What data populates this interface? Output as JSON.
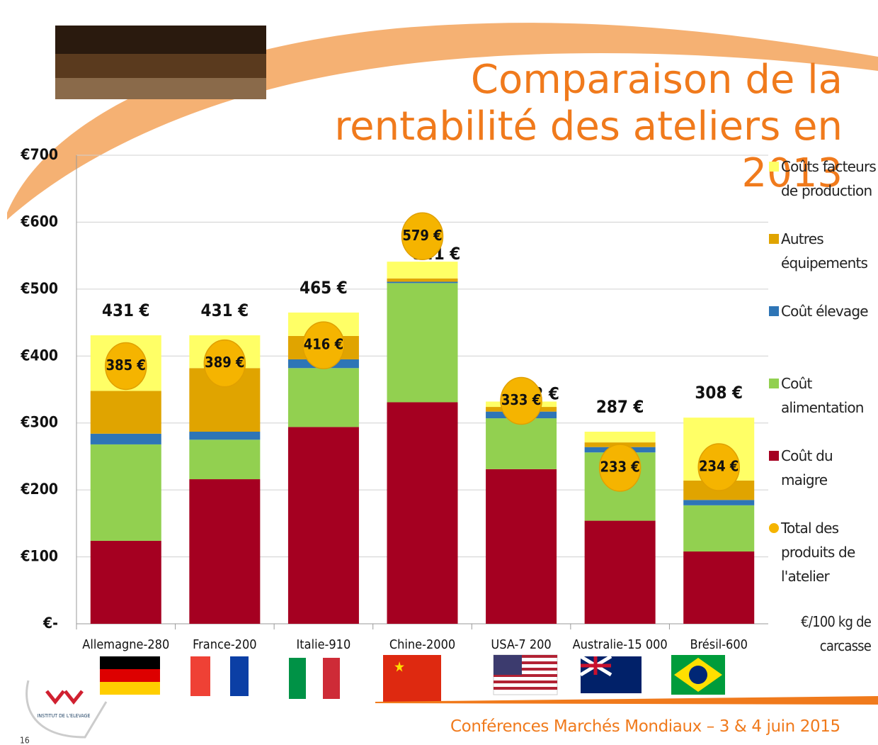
{
  "chart_data": {
    "type": "bar",
    "stacked": true,
    "title": "Comparaison de la rentabilité des ateliers en 2013",
    "categories": [
      "Allemagne-280",
      "France-200",
      "Italie-910",
      "Chine-2000",
      "USA-7 200",
      "Australie-15 000",
      "Brésil-600"
    ],
    "series": [
      {
        "name": "Coût du maigre",
        "color": "#a50021",
        "values": [
          124,
          216,
          294,
          331,
          231,
          154,
          108
        ]
      },
      {
        "name": "Coût alimentation",
        "color": "#92d050",
        "values": [
          144,
          59,
          88,
          178,
          76,
          102,
          69
        ]
      },
      {
        "name": "Coût élevage",
        "color": "#2e75b6",
        "values": [
          16,
          12,
          13,
          2,
          10,
          8,
          8
        ]
      },
      {
        "name": "Autres équipements",
        "color": "#e0a400",
        "values": [
          64,
          95,
          35,
          5,
          7,
          7,
          29
        ]
      },
      {
        "name": "Coûts facteurs de production",
        "color": "#ffff66",
        "values": [
          83,
          49,
          35,
          25,
          8,
          16,
          94
        ]
      }
    ],
    "products": {
      "type": "scatter",
      "name": "Total des produits de l'atelier",
      "color": "#f5b400",
      "values": [
        385,
        389,
        416,
        579,
        333,
        233,
        234
      ],
      "value_labels": [
        "385 €",
        "389 €",
        "416 €",
        "579 €",
        "333 €",
        "233 €",
        "234 €"
      ]
    },
    "totals": {
      "values": [
        431,
        431,
        465,
        541,
        332,
        287,
        308
      ],
      "value_labels": [
        "431 €",
        "431 €",
        "465 €",
        "541 €",
        "332 €",
        "287 €",
        "308 €"
      ]
    },
    "ylim": [
      0,
      700
    ],
    "yticks": [
      {
        "value": 0,
        "label": "€-"
      },
      {
        "value": 100,
        "label": "€100"
      },
      {
        "value": 200,
        "label": "€200"
      },
      {
        "value": 300,
        "label": "€300"
      },
      {
        "value": 400,
        "label": "€400"
      },
      {
        "value": 500,
        "label": "€500"
      },
      {
        "value": 600,
        "label": "€600"
      },
      {
        "value": 700,
        "label": "€700"
      }
    ],
    "grid": true,
    "legend": "right",
    "unit_note": "€/100 kg de carcasse"
  },
  "footer": "Conférences Marchés Mondiaux – 3 & 4 juin 2015",
  "slide_number": "16",
  "logo_text": "INSTITUT DE L'ELEVAGE"
}
